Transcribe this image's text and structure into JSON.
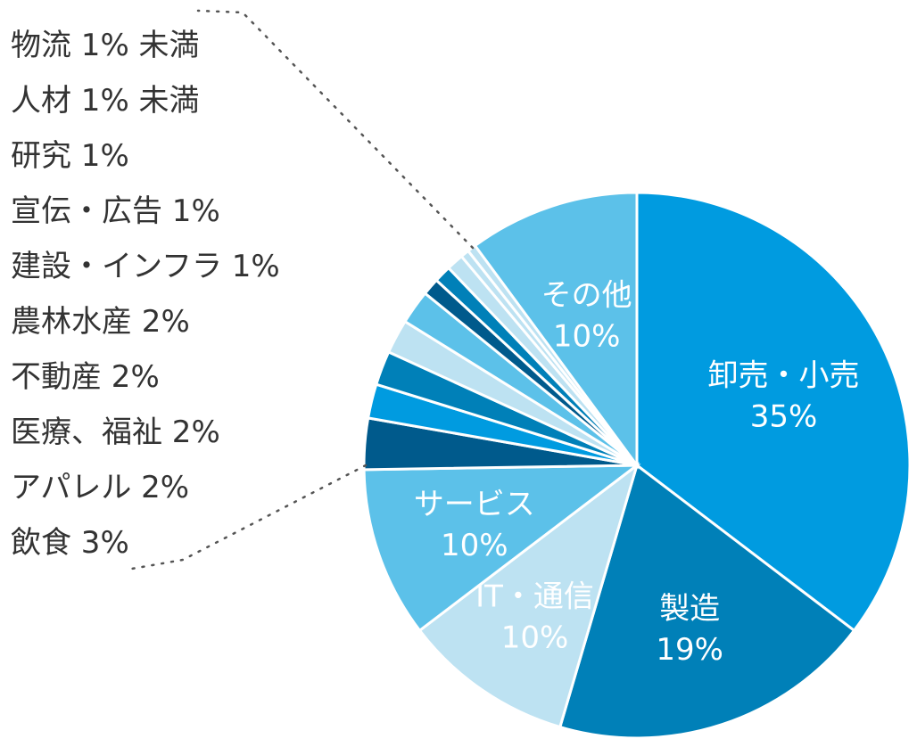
{
  "chart_data": {
    "type": "pie",
    "title": "",
    "slices": [
      {
        "label": "卸売・小売",
        "value_text": "35%",
        "value": 35,
        "color": "#009be0"
      },
      {
        "label": "製造",
        "value_text": "19%",
        "value": 19,
        "color": "#0080b8"
      },
      {
        "label": "IT・通信",
        "value_text": "10%",
        "value": 10,
        "color": "#bde2f2"
      },
      {
        "label": "サービス",
        "value_text": "10%",
        "value": 10,
        "color": "#5cc1e9"
      },
      {
        "label": "飲食",
        "value_text": "3%",
        "value": 3,
        "color": "#005a8c"
      },
      {
        "label": "アパレル",
        "value_text": "2%",
        "value": 2,
        "color": "#009be0"
      },
      {
        "label": "医療、福祉",
        "value_text": "2%",
        "value": 2,
        "color": "#0080b8"
      },
      {
        "label": "不動産",
        "value_text": "2%",
        "value": 2,
        "color": "#bde2f2"
      },
      {
        "label": "農林水産",
        "value_text": "2%",
        "value": 2,
        "color": "#5cc1e9"
      },
      {
        "label": "建設・インフラ",
        "value_text": "1%",
        "value": 1,
        "color": "#005a8c"
      },
      {
        "label": "宣伝・広告",
        "value_text": "1%",
        "value": 1,
        "color": "#0080b8"
      },
      {
        "label": "研究",
        "value_text": "1%",
        "value": 1,
        "color": "#bde2f2"
      },
      {
        "label": "人材",
        "value_text": "1% 未満",
        "value": 0.5,
        "color": "#bde2f2"
      },
      {
        "label": "物流",
        "value_text": "1% 未満",
        "value": 0.5,
        "color": "#bde2f2"
      },
      {
        "label": "その他",
        "value_text": "10%",
        "value": 10,
        "color": "#5cc1e9"
      }
    ],
    "legend_entries": [
      "物流 1% 未満",
      "人材 1% 未満",
      "研究 1%",
      "宣伝・広告 1%",
      "建設・インフラ 1%",
      "農林水産 2%",
      "不動産 2%",
      "医療、福祉 2%",
      "アパレル 2%",
      "飲食 3%"
    ],
    "legend_placement": "left"
  }
}
